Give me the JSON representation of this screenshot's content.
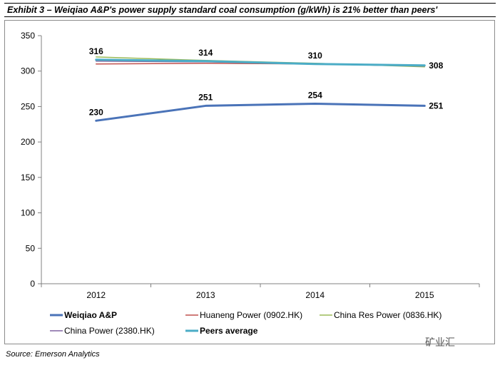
{
  "header": {
    "title": "Exhibit 3 – Weiqiao A&P's power supply standard coal consumption (g/kWh) is 21% better than peers'"
  },
  "source": "Source: Emerson Analytics",
  "watermark": "矿业汇",
  "chart_data": {
    "type": "line",
    "title": "",
    "xlabel": "",
    "ylabel": "",
    "categories": [
      "2012",
      "2013",
      "2014",
      "2015"
    ],
    "ylim": [
      0,
      350
    ],
    "yticks": [
      0,
      50,
      100,
      150,
      200,
      250,
      300,
      350
    ],
    "grid": false,
    "legend_position": "bottom",
    "series": [
      {
        "name": "Weiqiao A&P",
        "values": [
          230,
          251,
          254,
          251
        ],
        "color": "#4a73b8",
        "bold": true,
        "labeled": true
      },
      {
        "name": "Huaneng Power (0902.HK)",
        "values": [
          310,
          311,
          310,
          307
        ],
        "color": "#c0504d",
        "bold": false,
        "labeled": false
      },
      {
        "name": "China Res Power (0836.HK)",
        "values": [
          320,
          315,
          311,
          306
        ],
        "color": "#9bbb59",
        "bold": false,
        "labeled": false
      },
      {
        "name": "China Power (2380.HK)",
        "values": [
          314,
          313,
          310,
          307
        ],
        "color": "#8064a2",
        "bold": false,
        "labeled": false
      },
      {
        "name": "Peers average",
        "values": [
          316,
          314,
          310,
          308
        ],
        "color": "#4bacc6",
        "bold": true,
        "labeled": true
      }
    ]
  }
}
